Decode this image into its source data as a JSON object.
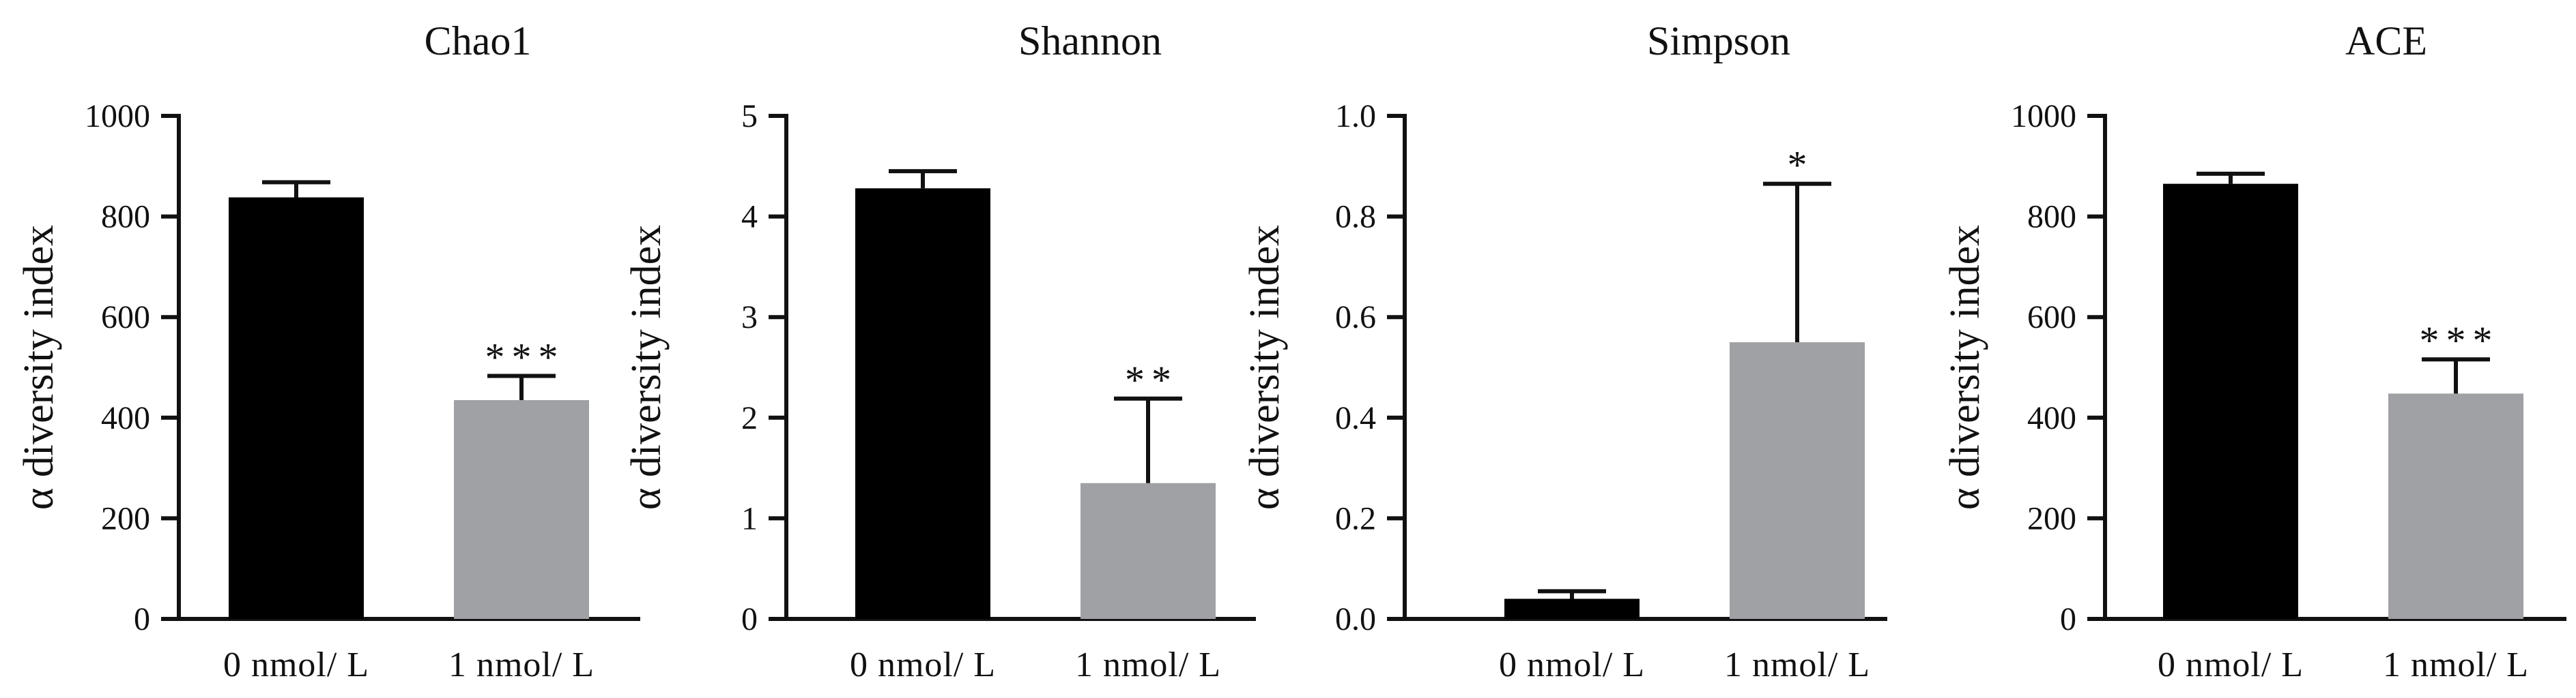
{
  "chart_data": [
    {
      "type": "bar",
      "title": "Chao1",
      "ylabel": "α diversity index",
      "xlabel": "",
      "categories": [
        "0  nmol/ L",
        "1  nmol/ L"
      ],
      "values": [
        838,
        435
      ],
      "errors": [
        30,
        48
      ],
      "colors": [
        "#000000",
        "#a0a1a4"
      ],
      "significance": [
        "",
        "***"
      ],
      "ylim": [
        0,
        1000
      ],
      "yticks": [
        0,
        200,
        400,
        600,
        800,
        1000
      ],
      "ytick_labels": [
        "0",
        "200",
        "400",
        "600",
        "800",
        "1000"
      ]
    },
    {
      "type": "bar",
      "title": "Shannon",
      "ylabel": "α diversity index",
      "xlabel": "",
      "categories": [
        "0  nmol/ L",
        "1  nmol/ L"
      ],
      "values": [
        4.28,
        1.35
      ],
      "errors": [
        0.17,
        0.84
      ],
      "colors": [
        "#000000",
        "#a0a1a4"
      ],
      "significance": [
        "",
        "**"
      ],
      "ylim": [
        0,
        5
      ],
      "yticks": [
        0,
        1,
        2,
        3,
        4,
        5
      ],
      "ytick_labels": [
        "0",
        "1",
        "2",
        "3",
        "4",
        "5"
      ]
    },
    {
      "type": "bar",
      "title": "Simpson",
      "ylabel": "α diversity index",
      "xlabel": "",
      "categories": [
        "0  nmol/ L",
        "1  nmol/ L"
      ],
      "values": [
        0.04,
        0.55
      ],
      "errors": [
        0.015,
        0.315
      ],
      "colors": [
        "#000000",
        "#a0a1a4"
      ],
      "significance": [
        "",
        "*"
      ],
      "ylim": [
        0,
        1.0
      ],
      "yticks": [
        0,
        0.2,
        0.4,
        0.6,
        0.8,
        1.0
      ],
      "ytick_labels": [
        "0.0",
        "0.2",
        "0.4",
        "0.6",
        "0.8",
        "1.0"
      ]
    },
    {
      "type": "bar",
      "title": "ACE",
      "ylabel": "α diversity index",
      "xlabel": "",
      "categories": [
        "0  nmol/ L",
        "1  nmol/ L"
      ],
      "values": [
        865,
        448
      ],
      "errors": [
        20,
        68
      ],
      "colors": [
        "#000000",
        "#a0a1a4"
      ],
      "significance": [
        "",
        "***"
      ],
      "ylim": [
        0,
        1000
      ],
      "yticks": [
        0,
        200,
        400,
        600,
        800,
        1000
      ],
      "ytick_labels": [
        "0",
        "200",
        "400",
        "600",
        "800",
        "1000"
      ]
    }
  ]
}
